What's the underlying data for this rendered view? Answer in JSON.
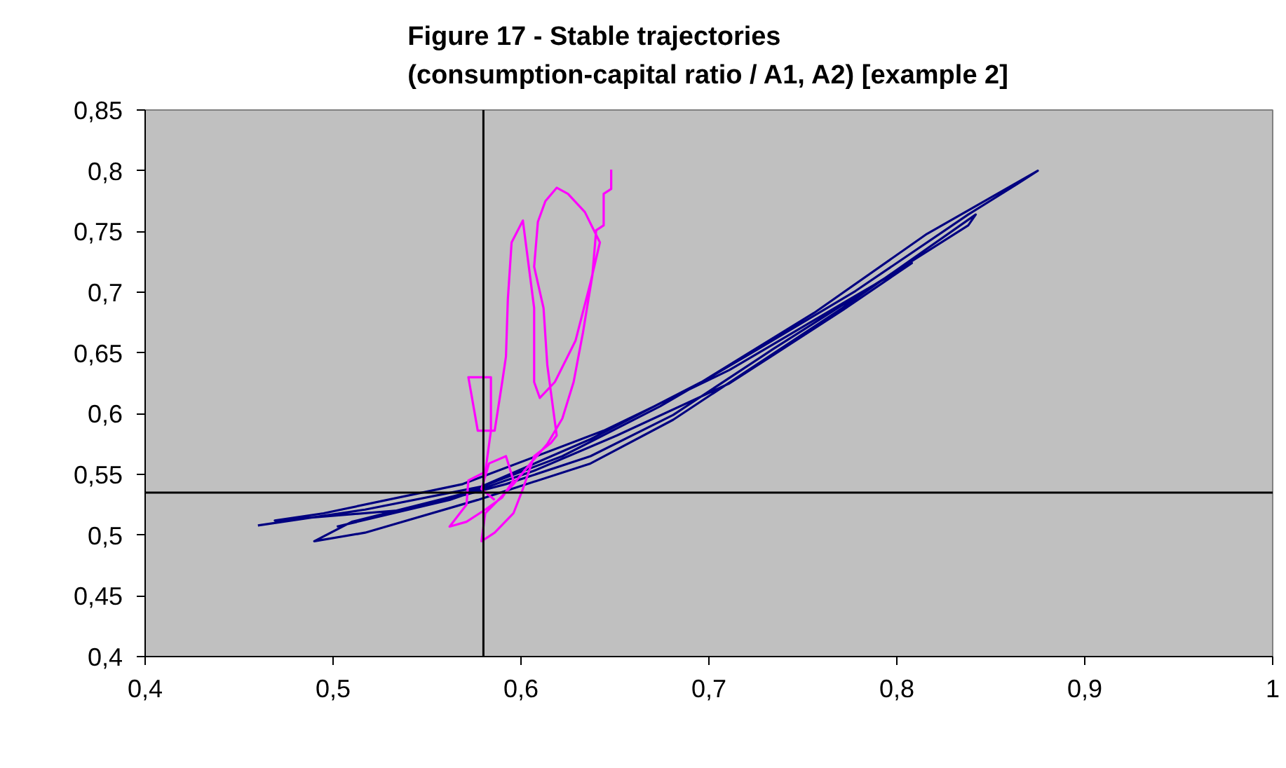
{
  "chart_data": {
    "type": "line",
    "title": "Figure 17 - Stable trajectories\n(consumption-capital ratio / A1, A2) [example 2]",
    "xlim": [
      0.4,
      1
    ],
    "ylim": [
      0.4,
      0.85
    ],
    "xticks": [
      {
        "value": 0.4,
        "label": "0,4"
      },
      {
        "value": 0.5,
        "label": "0,5"
      },
      {
        "value": 0.6,
        "label": "0,6"
      },
      {
        "value": 0.7,
        "label": "0,7"
      },
      {
        "value": 0.8,
        "label": "0,8"
      },
      {
        "value": 0.9,
        "label": "0,9"
      },
      1
    ],
    "yticks": [
      {
        "value": 0.4,
        "label": "0,4"
      },
      {
        "value": 0.45,
        "label": "0,45"
      },
      {
        "value": 0.5,
        "label": "0,5"
      },
      {
        "value": 0.55,
        "label": "0,55"
      },
      {
        "value": 0.6,
        "label": "0,6"
      },
      {
        "value": 0.65,
        "label": "0,65"
      },
      {
        "value": 0.7,
        "label": "0,7"
      },
      {
        "value": 0.75,
        "label": "0,75"
      },
      {
        "value": 0.8,
        "label": "0,8"
      },
      {
        "value": 0.85,
        "label": "0,85"
      }
    ],
    "grid": false,
    "marker": "none",
    "line_style": "solid",
    "ref_lines": [
      {
        "axis": "x",
        "value": 0.58,
        "color": "#000000"
      },
      {
        "axis": "y",
        "value": 0.535,
        "color": "#000000"
      }
    ],
    "series": [
      {
        "color": "#000080",
        "x": [
          0.46,
          0.517,
          0.579,
          0.637,
          0.696,
          0.756,
          0.816,
          0.875,
          0.864,
          0.838,
          0.778,
          0.726,
          0.674,
          0.622,
          0.569,
          0.51,
          0.49,
          0.517,
          0.577,
          0.637,
          0.681,
          0.771,
          0.842,
          0.838,
          0.79,
          0.734,
          0.681,
          0.637,
          0.592,
          0.54,
          0.469,
          0.495,
          0.569,
          0.644,
          0.711,
          0.778,
          0.808,
          0.771,
          0.711,
          0.651,
          0.607,
          0.562,
          0.502
        ],
        "values": [
          0.508,
          0.521,
          0.54,
          0.579,
          0.626,
          0.683,
          0.748,
          0.8,
          0.789,
          0.764,
          0.701,
          0.653,
          0.606,
          0.565,
          0.534,
          0.511,
          0.495,
          0.502,
          0.529,
          0.559,
          0.595,
          0.687,
          0.764,
          0.755,
          0.708,
          0.653,
          0.599,
          0.565,
          0.542,
          0.521,
          0.512,
          0.518,
          0.542,
          0.586,
          0.636,
          0.697,
          0.724,
          0.685,
          0.625,
          0.582,
          0.553,
          0.529,
          0.507
        ]
      },
      {
        "color": "#ff00ff",
        "x": [
          0.648,
          0.648,
          0.644,
          0.644,
          0.64,
          0.638,
          0.633,
          0.628,
          0.622,
          0.614,
          0.605,
          0.596,
          0.588,
          0.581,
          0.579,
          0.586,
          0.596,
          0.601,
          0.607,
          0.616,
          0.619,
          0.614,
          0.612,
          0.607,
          0.609,
          0.613,
          0.619,
          0.625,
          0.634,
          0.642,
          0.637,
          0.629,
          0.618,
          0.61,
          0.607,
          0.607,
          0.601,
          0.595,
          0.593,
          0.592,
          0.59,
          0.586,
          0.577,
          0.572,
          0.584,
          0.584,
          0.581,
          0.572,
          0.571,
          0.562,
          0.571,
          0.581,
          0.59,
          0.596,
          0.592,
          0.583,
          0.579,
          0.586
        ],
        "values": [
          0.801,
          0.785,
          0.781,
          0.755,
          0.751,
          0.714,
          0.667,
          0.626,
          0.596,
          0.575,
          0.559,
          0.542,
          0.529,
          0.518,
          0.495,
          0.502,
          0.518,
          0.538,
          0.565,
          0.576,
          0.582,
          0.64,
          0.687,
          0.721,
          0.758,
          0.775,
          0.786,
          0.781,
          0.766,
          0.741,
          0.708,
          0.66,
          0.626,
          0.613,
          0.626,
          0.687,
          0.759,
          0.741,
          0.694,
          0.647,
          0.626,
          0.586,
          0.586,
          0.63,
          0.63,
          0.586,
          0.552,
          0.545,
          0.525,
          0.507,
          0.511,
          0.521,
          0.531,
          0.545,
          0.565,
          0.559,
          0.538,
          0.529
        ]
      }
    ]
  }
}
